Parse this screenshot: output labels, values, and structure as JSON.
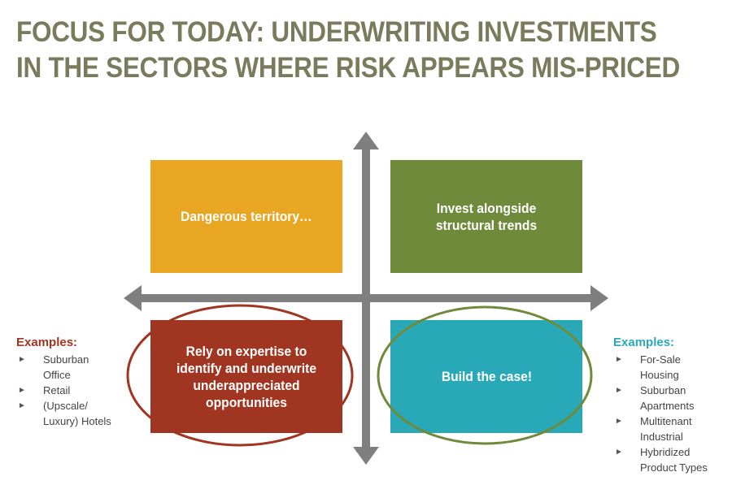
{
  "title": {
    "line1": "FOCUS FOR TODAY: UNDERWRITING INVESTMENTS",
    "line2": "IN THE SECTORS WHERE RISK APPEARS MIS-PRICED"
  },
  "quadrants": {
    "top_left": "Dangerous territory…",
    "top_right": "Invest alongside structural trends",
    "bottom_left": "Rely on expertise to identify and underwrite underappreciated opportunities",
    "bottom_right": "Build the case!"
  },
  "examples_left": {
    "heading": "Examples:",
    "items": [
      "Suburban Office",
      "Retail",
      "(Upscale/ Luxury) Hotels"
    ]
  },
  "examples_right": {
    "heading": "Examples:",
    "items": [
      "For-Sale Housing",
      "Suburban Apartments",
      "Multitenant Industrial",
      "Hybridized Product Types"
    ]
  },
  "colors": {
    "title": "#7a7a5c",
    "axis": "#7f7f7f",
    "top_left": "#e8a623",
    "top_right": "#6f8a3a",
    "bottom_left": "#a03522",
    "bottom_right": "#29a9b8",
    "ring_left": "#a03522",
    "ring_right": "#6f8a3a"
  },
  "bullet_glyph": "►"
}
